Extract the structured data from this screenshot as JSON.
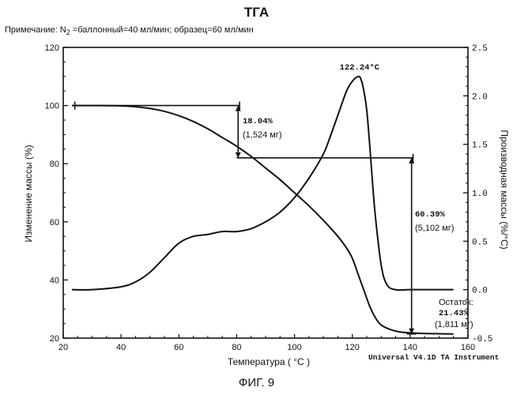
{
  "title": "ТГА",
  "note": {
    "prefix": "Примечание: N",
    "subscript": "2",
    "suffix": " =баллонный=40 мл/мин; образец=60 мл/мин"
  },
  "figure_caption": "ФИГ. 9",
  "instrument": "Universal V4.1D TA Instrument",
  "chart_data": {
    "type": "line",
    "xlabel": "Температура ( °C )",
    "ylabel_left": "Изменение массы (%)",
    "ylabel_right": "Производная массы (%/°C)",
    "xlim": [
      20,
      160
    ],
    "ylim_left": [
      20,
      120
    ],
    "ylim_right": [
      -0.5,
      2.5
    ],
    "x_ticks": [
      20,
      40,
      60,
      80,
      100,
      120,
      140,
      160
    ],
    "y_ticks_left": [
      20,
      40,
      60,
      80,
      100,
      120
    ],
    "y_ticks_right": [
      -0.5,
      0.0,
      0.5,
      1.0,
      1.5,
      2.0,
      2.5
    ],
    "y_tick_labels_right": [
      "-0.5",
      "0.0",
      "0.5",
      "1.0",
      "1.5",
      "2.0",
      "2.5"
    ],
    "grid": false,
    "series": [
      {
        "axis": "left",
        "x": [
          23,
          30,
          40,
          45,
          50,
          55,
          60,
          65,
          70,
          75,
          80,
          85,
          90,
          95,
          100,
          105,
          110,
          115,
          118,
          120,
          122,
          124,
          126,
          128,
          130,
          133,
          136,
          140,
          145,
          150,
          155
        ],
        "values": [
          100,
          100,
          99.9,
          99.6,
          99,
          98,
          96.5,
          94.5,
          92,
          89,
          86,
          82.5,
          78.5,
          74.5,
          70,
          65.5,
          60.5,
          55,
          51,
          47.5,
          42,
          36.5,
          31,
          27,
          24.5,
          23,
          22.2,
          21.8,
          21.6,
          21.5,
          21.43
        ]
      },
      {
        "axis": "right",
        "x": [
          23,
          30,
          40,
          45,
          50,
          55,
          60,
          65,
          70,
          75,
          80,
          85,
          90,
          95,
          100,
          105,
          110,
          112,
          115,
          118,
          120,
          122,
          123,
          124,
          125,
          126,
          127,
          128,
          130,
          132,
          135,
          140,
          145,
          150,
          155
        ],
        "values": [
          0.0,
          0.0,
          0.03,
          0.08,
          0.18,
          0.33,
          0.48,
          0.55,
          0.57,
          0.6,
          0.6,
          0.63,
          0.7,
          0.8,
          0.95,
          1.15,
          1.4,
          1.55,
          1.8,
          2.05,
          2.15,
          2.2,
          2.17,
          2.05,
          1.85,
          1.5,
          1.1,
          0.75,
          0.25,
          0.05,
          0.0,
          0.0,
          0.0,
          0.0,
          0.0
        ]
      }
    ],
    "annotations": {
      "peak_label": "122.24°C",
      "step1_pct": "18.04%",
      "step1_mass": "(1,524 мг)",
      "step2_pct": "60.39%",
      "step2_mass": "(5,102 мг)",
      "residue_label": "Остаток:",
      "residue_pct": "21.43%",
      "residue_mass": "(1,811 мг)"
    },
    "measurement_points": {
      "step1": {
        "x": 80.5,
        "from": 100,
        "to": 82
      },
      "step2": {
        "x": 140.5,
        "from": 82,
        "to": 21.43
      },
      "levels": [
        {
          "x1": 24,
          "x2": 81,
          "y": 100
        },
        {
          "x1": 80,
          "x2": 141,
          "y": 82
        }
      ]
    }
  }
}
